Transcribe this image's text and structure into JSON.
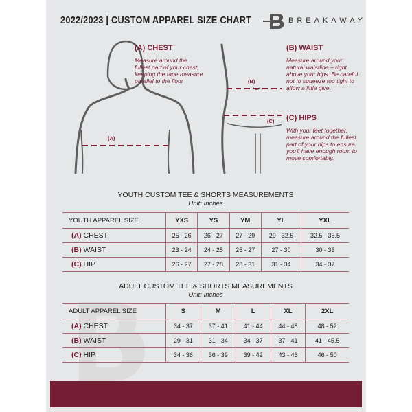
{
  "header": {
    "title": "2022/2023  |  CUSTOM APPAREL SIZE CHART",
    "brand": "BREAKAWAY",
    "logo_letter": "B"
  },
  "measures": {
    "chest": {
      "title": "(A) CHEST",
      "desc": "Measure around the fullest part of your chest, keeping the tape measure parallel to the floor",
      "marker": "(A)"
    },
    "waist": {
      "title": "(B) WAIST",
      "desc": "Measure around your natural waistline – right above your hips. Be careful not to squeeze too tight to allow a little give.",
      "marker": "(B)"
    },
    "hips": {
      "title": "(C) HIPS",
      "desc": "With your feet together, measure around the fullest part of your hips to ensure you'll have enough room to move comfortably.",
      "marker": "(C)"
    }
  },
  "youth": {
    "title": "YOUTH CUSTOM TEE & SHORTS MEASUREMENTS",
    "unit": "Unit: Inches",
    "header": "YOUTH APPAREL SIZE",
    "sizes": [
      "YXS",
      "YS",
      "YM",
      "YL",
      "YXL"
    ],
    "rows": [
      {
        "letter": "(A)",
        "label": "CHEST",
        "values": [
          "25 - 26",
          "26 - 27",
          "27 - 29",
          "29 - 32.5",
          "32.5 - 35.5"
        ]
      },
      {
        "letter": "(B)",
        "label": "WAIST",
        "values": [
          "23 - 24",
          "24 - 25",
          "25 - 27",
          "27 - 30",
          "30 - 33"
        ]
      },
      {
        "letter": "(C)",
        "label": "HIP",
        "values": [
          "26 - 27",
          "27 - 28",
          "28 - 31",
          "31 - 34",
          "34 - 37"
        ]
      }
    ]
  },
  "adult": {
    "title": "ADULT CUSTOM TEE & SHORTS MEASUREMENTS",
    "unit": "Unit: Inches",
    "header": "ADULT APPAREL SIZE",
    "sizes": [
      "S",
      "M",
      "L",
      "XL",
      "2XL"
    ],
    "rows": [
      {
        "letter": "(A)",
        "label": "CHEST",
        "values": [
          "34 - 37",
          "37 - 41",
          "41 - 44",
          "44 - 48",
          "48 - 52"
        ]
      },
      {
        "letter": "(B)",
        "label": "WAIST",
        "values": [
          "29 - 31",
          "31 - 34",
          "34 - 37",
          "37 - 41",
          "41 - 45.5"
        ]
      },
      {
        "letter": "(C)",
        "label": "HIP",
        "values": [
          "34 - 36",
          "36 - 39",
          "39 - 42",
          "43 - 46",
          "46 - 50"
        ]
      }
    ]
  },
  "colors": {
    "accent": "#751d33",
    "page": "#e6e7e8"
  }
}
